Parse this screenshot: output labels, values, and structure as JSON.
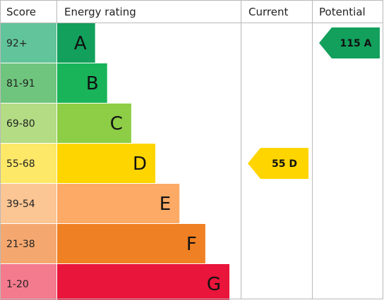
{
  "headers": {
    "score": "Score",
    "energy_rating": "Energy rating",
    "current": "Current",
    "potential": "Potential"
  },
  "chart_data": {
    "type": "bar",
    "bands": [
      {
        "range": "92+",
        "letter": "A",
        "score_color": "#62c49a",
        "color": "#12a05c",
        "rel_length": 0.22
      },
      {
        "range": "81-91",
        "letter": "B",
        "score_color": "#6fc57d",
        "color": "#19b459",
        "rel_length": 0.29
      },
      {
        "range": "69-80",
        "letter": "C",
        "score_color": "#b3dc84",
        "color": "#8dce46",
        "rel_length": 0.43
      },
      {
        "range": "55-68",
        "letter": "D",
        "score_color": "#fde868",
        "color": "#ffd500",
        "rel_length": 0.57
      },
      {
        "range": "39-54",
        "letter": "E",
        "score_color": "#fbc594",
        "color": "#fcaa65",
        "rel_length": 0.71
      },
      {
        "range": "21-38",
        "letter": "F",
        "score_color": "#f4a86f",
        "color": "#ef8023",
        "rel_length": 0.86
      },
      {
        "range": "1-20",
        "letter": "G",
        "score_color": "#f47a8d",
        "color": "#e9153b",
        "rel_length": 1.0
      }
    ],
    "current": {
      "label": "55 D",
      "score": 55,
      "band": "D",
      "color": "#ffd500"
    },
    "potential": {
      "label": "115 A",
      "score": 115,
      "band": "A",
      "color": "#12a05c"
    }
  }
}
